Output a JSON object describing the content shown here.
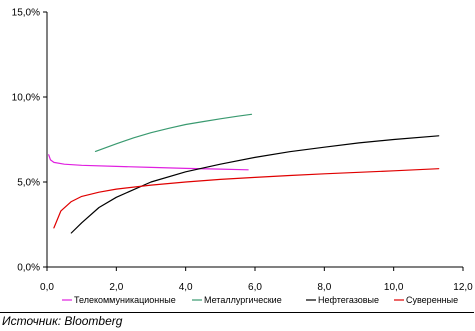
{
  "chart_data": {
    "type": "line",
    "title": "",
    "xlabel": "",
    "ylabel": "",
    "xlim": [
      0,
      12
    ],
    "ylim": [
      0,
      15
    ],
    "x_ticks": [
      "0,0",
      "2,0",
      "4,0",
      "6,0",
      "8,0",
      "10,0",
      "12,0"
    ],
    "x_tick_values": [
      0,
      2,
      4,
      6,
      8,
      10,
      12
    ],
    "y_ticks": [
      "0,0%",
      "5,0%",
      "10,0%",
      "15,0%"
    ],
    "y_tick_values": [
      0,
      5,
      10,
      15
    ],
    "grid": false,
    "legend_position": "bottom",
    "series": [
      {
        "name": "Телекоммуникационные",
        "color": "#e020e0",
        "x": [
          0.05,
          0.1,
          0.2,
          0.5,
          1.0,
          2.0,
          3.0,
          4.0,
          5.0,
          5.8
        ],
        "y": [
          6.6,
          6.3,
          6.15,
          6.05,
          5.98,
          5.92,
          5.86,
          5.8,
          5.76,
          5.72
        ]
      },
      {
        "name": "Металлургические",
        "color": "#3a9a70",
        "x": [
          1.4,
          2.0,
          2.5,
          3.0,
          3.5,
          4.0,
          4.5,
          5.0,
          5.5,
          5.9
        ],
        "y": [
          6.8,
          7.25,
          7.6,
          7.9,
          8.15,
          8.38,
          8.55,
          8.72,
          8.87,
          8.98
        ]
      },
      {
        "name": "Нефтегазовые",
        "color": "#000000",
        "x": [
          0.7,
          1.0,
          1.5,
          2.0,
          3.0,
          4.0,
          5.0,
          6.0,
          7.0,
          8.0,
          9.0,
          10.0,
          11.3
        ],
        "y": [
          2.0,
          2.6,
          3.5,
          4.1,
          5.0,
          5.6,
          6.05,
          6.45,
          6.78,
          7.05,
          7.3,
          7.5,
          7.72
        ]
      },
      {
        "name": "Суверенные",
        "color": "#e00000",
        "x": [
          0.2,
          0.4,
          0.7,
          1.0,
          1.5,
          2.0,
          3.0,
          4.0,
          5.0,
          6.0,
          7.0,
          8.0,
          9.0,
          10.0,
          11.3
        ],
        "y": [
          2.3,
          3.3,
          3.85,
          4.15,
          4.4,
          4.58,
          4.82,
          5.0,
          5.15,
          5.27,
          5.38,
          5.48,
          5.57,
          5.66,
          5.78
        ]
      }
    ]
  },
  "source_text": "Источник: Bloomberg"
}
